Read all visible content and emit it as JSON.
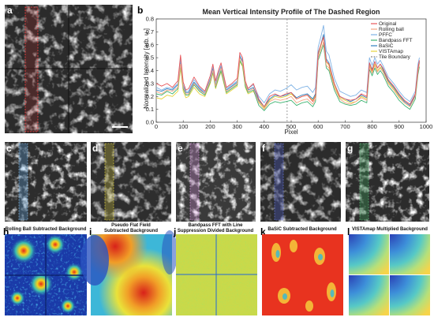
{
  "panels": {
    "a": "a",
    "b": "b",
    "c": "c",
    "d": "d",
    "e": "e",
    "f": "f",
    "g": "g",
    "h": "h",
    "i": "i",
    "j": "j",
    "k": "k",
    "l": "l"
  },
  "background_titles": {
    "h": [
      "Rolling Ball Subtracted Background"
    ],
    "i": [
      "Pseudo Flat Field",
      "Subtracted Background"
    ],
    "j": [
      "Bandpass FFT with Line",
      "Suppression Divided Background"
    ],
    "k": [
      "BaSiC Subtracted Background"
    ],
    "l": [
      "VISTAmap Multiplied Background"
    ]
  },
  "colors": {
    "Original": "#e8565a",
    "Rolling ball": "#f4a582",
    "PFFC": "#7fb2e5",
    "Bandpass FFT": "#3cb371",
    "BaSiC": "#2f7fbf",
    "VISTAmap": "#e6d23a",
    "Tile Boundary": "#888888",
    "Original extra": "#b07fc2"
  },
  "chart_data": {
    "type": "line",
    "title": "Mean Vertical Intensity Profile of The Dashed Region",
    "xlabel": "Pixel",
    "ylabel": "Normalized Intensity [arb. u.]",
    "xlim": [
      0,
      1000
    ],
    "ylim": [
      0,
      0.8
    ],
    "xticks": [
      0,
      100,
      200,
      300,
      400,
      500,
      600,
      700,
      800,
      900,
      1000
    ],
    "yticks": [
      0,
      0.1,
      0.2,
      0.3,
      0.4,
      0.5,
      0.6,
      0.7,
      0.8
    ],
    "legend_position": "top-right",
    "tile_boundary_x": 485,
    "x": [
      0,
      20,
      40,
      60,
      80,
      90,
      100,
      110,
      120,
      140,
      160,
      180,
      200,
      210,
      220,
      230,
      240,
      260,
      280,
      300,
      310,
      320,
      330,
      340,
      360,
      380,
      400,
      420,
      440,
      460,
      480,
      500,
      520,
      540,
      560,
      580,
      590,
      600,
      610,
      620,
      630,
      640,
      660,
      680,
      700,
      720,
      740,
      760,
      780,
      790,
      800,
      810,
      820,
      830,
      840,
      860,
      880,
      900,
      920,
      940,
      960,
      970,
      975
    ],
    "series": [
      {
        "name": "Original",
        "values": [
          0.3,
          0.28,
          0.3,
          0.27,
          0.32,
          0.52,
          0.31,
          0.25,
          0.26,
          0.35,
          0.28,
          0.24,
          0.36,
          0.45,
          0.32,
          0.4,
          0.46,
          0.27,
          0.3,
          0.34,
          0.54,
          0.5,
          0.32,
          0.26,
          0.3,
          0.18,
          0.12,
          0.2,
          0.22,
          0.2,
          0.22,
          0.23,
          0.18,
          0.2,
          0.21,
          0.16,
          0.2,
          0.54,
          0.6,
          0.66,
          0.47,
          0.45,
          0.3,
          0.2,
          0.18,
          0.17,
          0.18,
          0.22,
          0.2,
          0.46,
          0.4,
          0.47,
          0.42,
          0.45,
          0.42,
          0.33,
          0.28,
          0.22,
          0.17,
          0.14,
          0.22,
          0.42,
          0.48
        ]
      },
      {
        "name": "Rolling ball",
        "values": [
          0.24,
          0.22,
          0.25,
          0.24,
          0.27,
          0.45,
          0.27,
          0.22,
          0.22,
          0.3,
          0.25,
          0.22,
          0.32,
          0.4,
          0.28,
          0.36,
          0.42,
          0.24,
          0.27,
          0.3,
          0.5,
          0.46,
          0.3,
          0.24,
          0.26,
          0.15,
          0.1,
          0.16,
          0.18,
          0.17,
          0.18,
          0.2,
          0.15,
          0.17,
          0.18,
          0.14,
          0.18,
          0.5,
          0.56,
          0.62,
          0.44,
          0.42,
          0.27,
          0.18,
          0.15,
          0.14,
          0.16,
          0.19,
          0.17,
          0.43,
          0.38,
          0.44,
          0.39,
          0.42,
          0.39,
          0.3,
          0.25,
          0.19,
          0.15,
          0.12,
          0.2,
          0.39,
          0.45
        ]
      },
      {
        "name": "PFFC",
        "values": [
          0.27,
          0.25,
          0.27,
          0.26,
          0.3,
          0.49,
          0.29,
          0.24,
          0.24,
          0.33,
          0.27,
          0.23,
          0.34,
          0.43,
          0.3,
          0.38,
          0.44,
          0.26,
          0.29,
          0.32,
          0.52,
          0.48,
          0.31,
          0.26,
          0.29,
          0.2,
          0.15,
          0.22,
          0.25,
          0.24,
          0.26,
          0.29,
          0.25,
          0.27,
          0.28,
          0.23,
          0.27,
          0.58,
          0.66,
          0.75,
          0.55,
          0.52,
          0.34,
          0.24,
          0.22,
          0.2,
          0.21,
          0.25,
          0.23,
          0.5,
          0.44,
          0.5,
          0.45,
          0.48,
          0.44,
          0.35,
          0.3,
          0.24,
          0.19,
          0.16,
          0.24,
          0.45,
          0.5
        ]
      },
      {
        "name": "Bandpass FFT",
        "values": [
          0.22,
          0.21,
          0.24,
          0.22,
          0.26,
          0.44,
          0.26,
          0.21,
          0.21,
          0.29,
          0.24,
          0.21,
          0.31,
          0.39,
          0.27,
          0.34,
          0.4,
          0.23,
          0.26,
          0.29,
          0.48,
          0.44,
          0.28,
          0.23,
          0.25,
          0.13,
          0.09,
          0.14,
          0.16,
          0.15,
          0.16,
          0.17,
          0.13,
          0.15,
          0.16,
          0.12,
          0.16,
          0.48,
          0.54,
          0.6,
          0.42,
          0.4,
          0.25,
          0.16,
          0.14,
          0.13,
          0.14,
          0.17,
          0.15,
          0.41,
          0.36,
          0.42,
          0.37,
          0.4,
          0.37,
          0.28,
          0.23,
          0.17,
          0.13,
          0.1,
          0.18,
          0.37,
          0.43
        ]
      },
      {
        "name": "BaSiC",
        "values": [
          0.25,
          0.24,
          0.26,
          0.25,
          0.29,
          0.47,
          0.28,
          0.23,
          0.23,
          0.31,
          0.26,
          0.22,
          0.33,
          0.42,
          0.29,
          0.37,
          0.43,
          0.25,
          0.28,
          0.31,
          0.51,
          0.47,
          0.3,
          0.25,
          0.27,
          0.17,
          0.12,
          0.18,
          0.21,
          0.2,
          0.21,
          0.23,
          0.19,
          0.21,
          0.22,
          0.18,
          0.22,
          0.53,
          0.6,
          0.68,
          0.49,
          0.46,
          0.3,
          0.2,
          0.18,
          0.16,
          0.18,
          0.21,
          0.19,
          0.46,
          0.41,
          0.47,
          0.42,
          0.45,
          0.41,
          0.32,
          0.27,
          0.21,
          0.16,
          0.13,
          0.21,
          0.41,
          0.47
        ]
      },
      {
        "name": "VISTAmap",
        "values": [
          0.19,
          0.18,
          0.21,
          0.2,
          0.24,
          0.42,
          0.24,
          0.19,
          0.2,
          0.27,
          0.22,
          0.2,
          0.3,
          0.38,
          0.26,
          0.33,
          0.39,
          0.22,
          0.25,
          0.28,
          0.47,
          0.43,
          0.27,
          0.22,
          0.24,
          0.16,
          0.11,
          0.17,
          0.2,
          0.19,
          0.2,
          0.22,
          0.18,
          0.2,
          0.21,
          0.17,
          0.21,
          0.52,
          0.59,
          0.66,
          0.47,
          0.44,
          0.28,
          0.19,
          0.17,
          0.15,
          0.16,
          0.2,
          0.18,
          0.44,
          0.39,
          0.45,
          0.4,
          0.43,
          0.4,
          0.31,
          0.26,
          0.2,
          0.15,
          0.12,
          0.2,
          0.4,
          0.46
        ]
      }
    ],
    "legend": [
      "Original",
      "Rolling ball",
      "PFFC",
      "Bandpass FFT",
      "BaSiC",
      "VISTAmap",
      "Tile Boundary"
    ]
  }
}
